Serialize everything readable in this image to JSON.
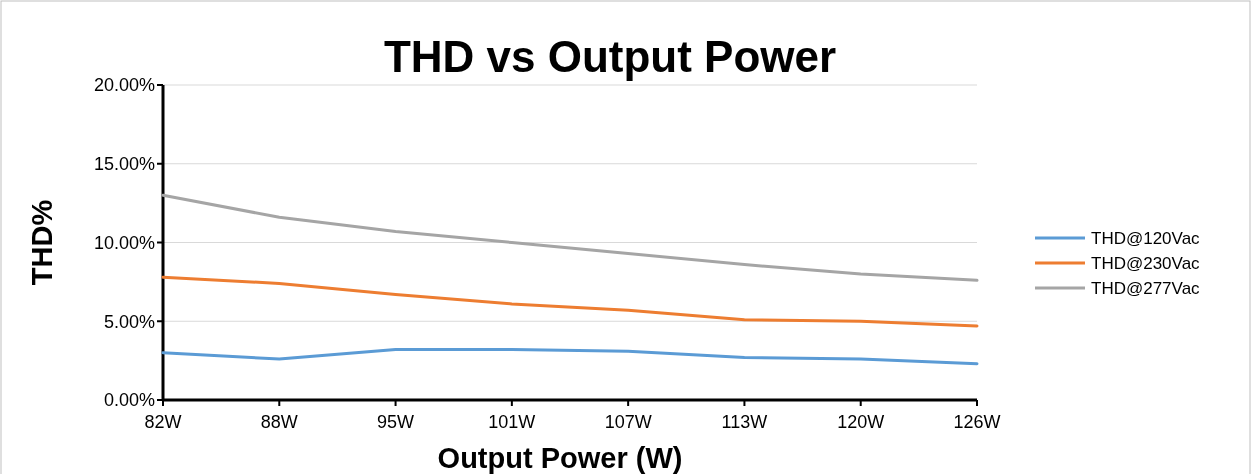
{
  "chart_data": {
    "type": "line",
    "title": "THD vs Output Power",
    "xlabel": "Output Power (W)",
    "ylabel": "THD%",
    "categories": [
      "82W",
      "88W",
      "95W",
      "101W",
      "107W",
      "113W",
      "120W",
      "126W"
    ],
    "series": [
      {
        "name": "THD@120Vac",
        "color": "#5b9bd5",
        "values": [
          3.0,
          2.6,
          3.2,
          3.2,
          3.1,
          2.7,
          2.6,
          2.3
        ]
      },
      {
        "name": "THD@230Vac",
        "color": "#ed7d31",
        "values": [
          7.8,
          7.4,
          6.7,
          6.1,
          5.7,
          5.1,
          5.0,
          4.7
        ]
      },
      {
        "name": "THD@277Vac",
        "color": "#a5a5a5",
        "values": [
          13.0,
          11.6,
          10.7,
          10.0,
          9.3,
          8.6,
          8.0,
          7.6
        ]
      }
    ],
    "ylim": [
      0,
      20
    ],
    "yticks": [
      {
        "value": 0,
        "label": "0.00%"
      },
      {
        "value": 5,
        "label": "5.00%"
      },
      {
        "value": 10,
        "label": "10.00%"
      },
      {
        "value": 15,
        "label": "15.00%"
      },
      {
        "value": 20,
        "label": "20.00%"
      }
    ],
    "grid": "y",
    "legend": "right",
    "marker": "none",
    "line_style": "solid"
  }
}
